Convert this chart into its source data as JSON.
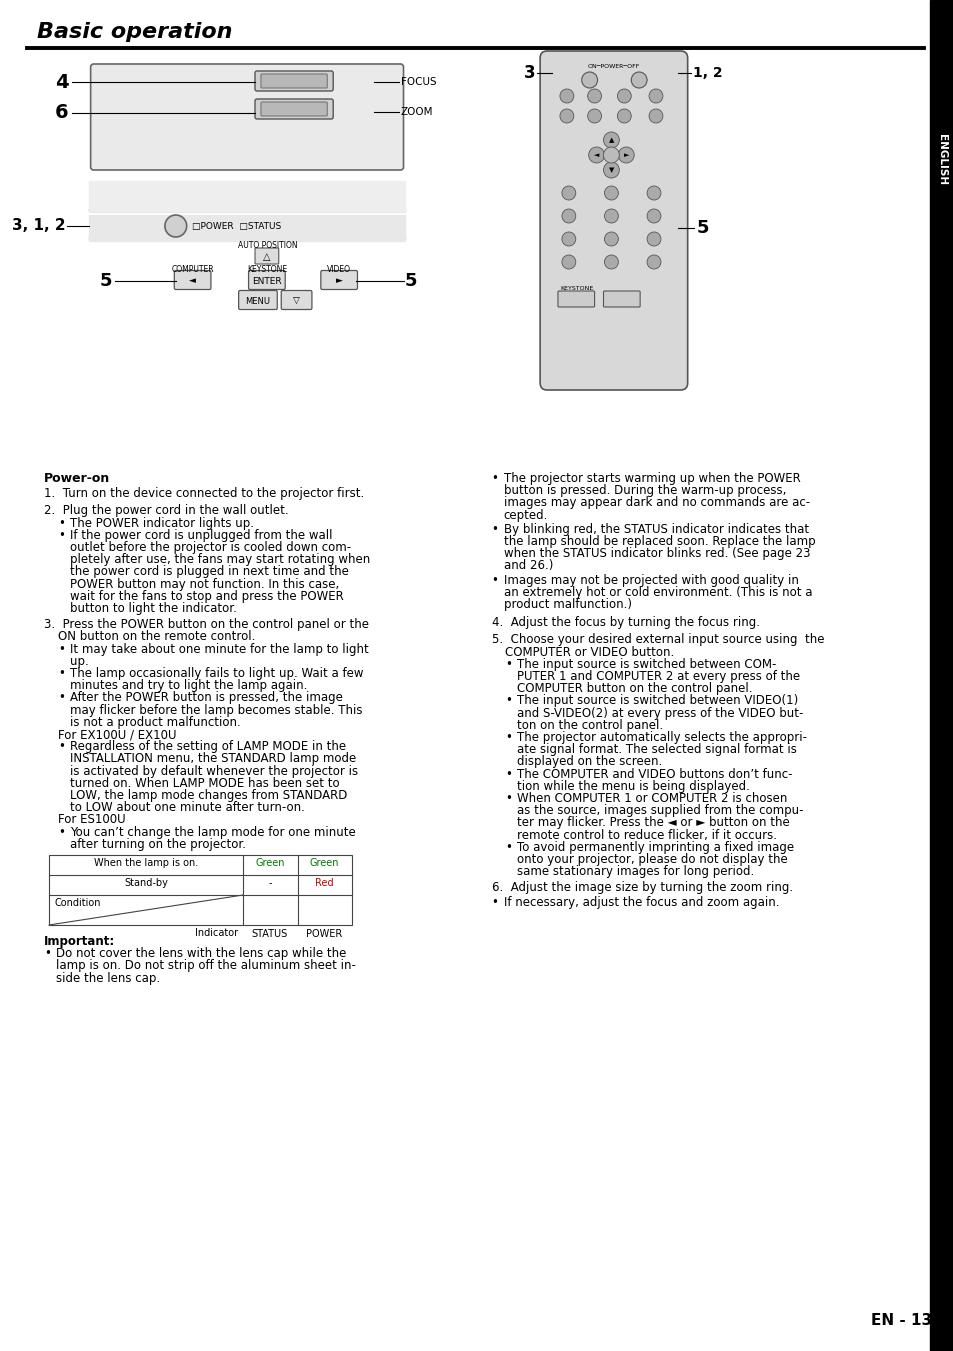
{
  "title": "Basic operation",
  "page_num": "EN - 13",
  "bg_color": "#ffffff",
  "title_fontsize": 16,
  "body_fontsize": 8.5,
  "sidebar_text": "ENGLISH",
  "power_on_heading": "Power-on",
  "step1": "1.  Turn on the device connected to the projector first.",
  "step2_heading": "2.  Plug the power cord in the wall outlet.",
  "step2_bullets": [
    [
      "The POWER indicator lights up."
    ],
    [
      "If the power cord is unplugged from the wall",
      "outlet before the projector is cooled down com-",
      "pletely after use, the fans may start rotating when",
      "the power cord is plugged in next time and the",
      "POWER button may not function. In this case,",
      "wait for the fans to stop and press the POWER",
      "button to light the indicator."
    ]
  ],
  "step3_heading1": "3.  Press the POWER button on the control panel or the",
  "step3_heading2": "ON button on the remote control.",
  "step3_bullets": [
    [
      "It may take about one minute for the lamp to light",
      "up."
    ],
    [
      "The lamp occasionally fails to light up. Wait a few",
      "minutes and try to light the lamp again."
    ],
    [
      "After the POWER button is pressed, the image",
      "may flicker before the lamp becomes stable. This",
      "is not a product malfunction."
    ]
  ],
  "step3_for1": "For EX100U / EX10U",
  "step3_b4": [
    "Regardless of the setting of LAMP MODE in the",
    "INSTALLATION menu, the STANDARD lamp mode",
    "is activated by default whenever the projector is",
    "turned on. When LAMP MODE has been set to",
    "LOW, the lamp mode changes from STANDARD",
    "to LOW about one minute after turn-on."
  ],
  "step3_for2": "For ES100U",
  "step3_b5": [
    "You can’t change the lamp mode for one minute",
    "after turning on the projector."
  ],
  "bullet_r1": [
    "The projector starts warming up when the POWER",
    "button is pressed. During the warm-up process,",
    "images may appear dark and no commands are ac-",
    "cepted."
  ],
  "bullet_r2": [
    "By blinking red, the STATUS indicator indicates that",
    "the lamp should be replaced soon. Replace the lamp",
    "when the STATUS indicator blinks red. (See page 23",
    "and 26.)"
  ],
  "bullet_r3": [
    "Images may not be projected with good quality in",
    "an extremely hot or cold environment. (This is not a",
    "product malfunction.)"
  ],
  "step4": "4.  Adjust the focus by turning the focus ring.",
  "step5_heading1": "5.  Choose your desired external input source using  the",
  "step5_heading2": "COMPUTER or VIDEO button.",
  "step5_bullets": [
    [
      "The input source is switched between COM-",
      "PUTER 1 and COMPUTER 2 at every press of the",
      "COMPUTER button on the control panel."
    ],
    [
      "The input source is switched between VIDEO(1)",
      "and S-VIDEO(2) at every press of the VIDEO but-",
      "ton on the control panel."
    ],
    [
      "The projector automatically selects the appropri-",
      "ate signal format. The selected signal format is",
      "displayed on the screen."
    ],
    [
      "The COMPUTER and VIDEO buttons don’t func-",
      "tion while the menu is being displayed."
    ],
    [
      "When COMPUTER 1 or COMPUTER 2 is chosen",
      "as the source, images supplied from the compu-",
      "ter may flicker. Press the ◄ or ► button on the",
      "remote control to reduce flicker, if it occurs."
    ],
    [
      "To avoid permanently imprinting a fixed image",
      "onto your projector, please do not display the",
      "same stationary images for long period."
    ]
  ],
  "step6": "6.  Adjust the image size by turning the zoom ring.",
  "bullet_last1": [
    "If necessary, adjust the focus and zoom again."
  ],
  "important_heading": "Important:",
  "important_b1": [
    "Do not cover the lens with the lens cap while the",
    "lamp is on. Do not strip off the aluminum sheet in-",
    "side the lens cap."
  ],
  "table_header_condition": "Condition",
  "table_header_indicator": "Indicator",
  "table_header_status": "STATUS",
  "table_header_power": "POWER",
  "table_row1_condition": "Stand-by",
  "table_row1_status": "-",
  "table_row1_power": "Red",
  "table_row2_condition": "When the lamp is on.",
  "table_row2_status": "Green",
  "table_row2_power": "Green"
}
